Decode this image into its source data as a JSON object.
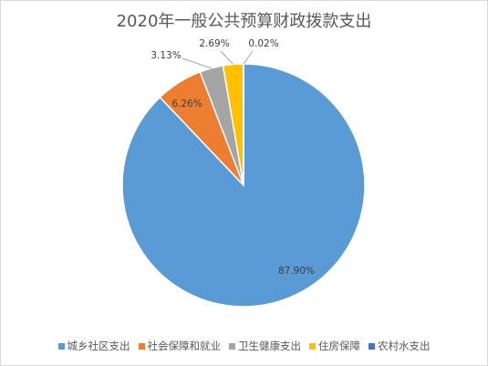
{
  "chart_data": {
    "type": "pie",
    "title": "2020年一般公共预算财政拨款支出",
    "categories": [
      "城乡社区支出",
      "社会保障和就业",
      "卫生健康支出",
      "住房保障",
      "农村水支出"
    ],
    "values": [
      87.9,
      6.26,
      3.13,
      2.69,
      0.02
    ],
    "data_labels": [
      "87.90%",
      "6.26%",
      "3.13%",
      "2.69%",
      "0.02%"
    ],
    "colors": [
      "#5b9bd5",
      "#ed7d31",
      "#a5a5a5",
      "#ffc000",
      "#4472c4"
    ],
    "legend_position": "bottom",
    "start_angle_deg": 0,
    "direction": "clockwise"
  }
}
